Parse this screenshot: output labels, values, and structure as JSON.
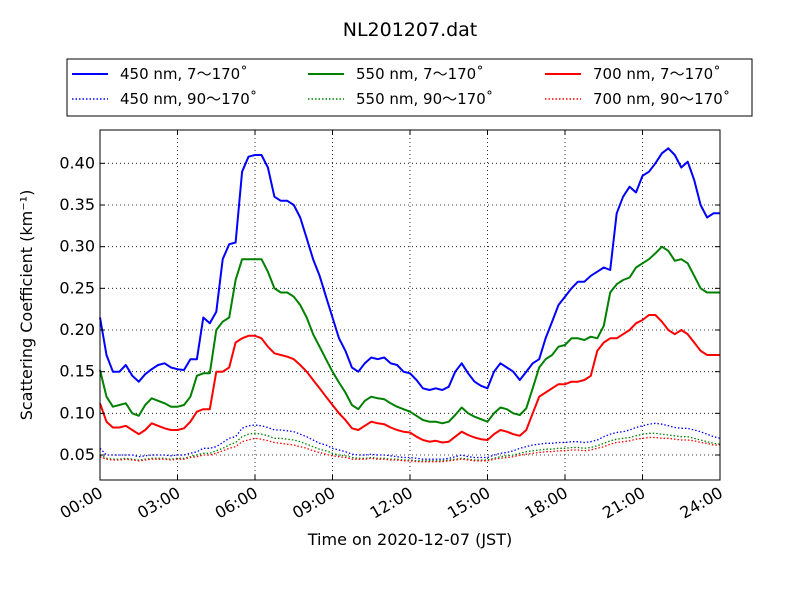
{
  "chart_data": {
    "type": "line",
    "title": "NL201207.dat",
    "xlabel": "Time on 2020-12-07 (JST)",
    "ylabel": "Scattering Coefficient (km⁻¹)",
    "xlim": [
      0,
      24
    ],
    "ylim": [
      0.02,
      0.44
    ],
    "x_tick_labels": [
      "00:00",
      "03:00",
      "06:00",
      "09:00",
      "12:00",
      "15:00",
      "18:00",
      "21:00",
      "24:00"
    ],
    "y_tick_labels": [
      "0.05",
      "0.10",
      "0.15",
      "0.20",
      "0.25",
      "0.30",
      "0.35",
      "0.40"
    ],
    "grid": true,
    "legend_position": "top",
    "x": [
      0,
      0.25,
      0.5,
      0.75,
      1,
      1.25,
      1.5,
      1.75,
      2,
      2.25,
      2.5,
      2.75,
      3,
      3.25,
      3.5,
      3.75,
      4,
      4.25,
      4.5,
      4.75,
      5,
      5.25,
      5.5,
      5.75,
      6,
      6.25,
      6.5,
      6.75,
      7,
      7.25,
      7.5,
      7.75,
      8,
      8.25,
      8.5,
      8.75,
      9,
      9.25,
      9.5,
      9.75,
      10,
      10.25,
      10.5,
      10.75,
      11,
      11.25,
      11.5,
      11.75,
      12,
      12.25,
      12.5,
      12.75,
      13,
      13.25,
      13.5,
      13.75,
      14,
      14.25,
      14.5,
      14.75,
      15,
      15.25,
      15.5,
      15.75,
      16,
      16.25,
      16.5,
      16.75,
      17,
      17.25,
      17.5,
      17.75,
      18,
      18.25,
      18.5,
      18.75,
      19,
      19.25,
      19.5,
      19.75,
      20,
      20.25,
      20.5,
      20.75,
      21,
      21.25,
      21.5,
      21.75,
      22,
      22.25,
      22.5,
      22.75,
      23,
      23.25,
      23.5,
      23.75,
      24
    ],
    "series": [
      {
        "name": "450 nm, 7～170˚",
        "color": "#0000ff",
        "style": "solid",
        "values": [
          0.215,
          0.17,
          0.15,
          0.15,
          0.158,
          0.145,
          0.138,
          0.147,
          0.153,
          0.158,
          0.16,
          0.155,
          0.153,
          0.152,
          0.165,
          0.165,
          0.215,
          0.208,
          0.222,
          0.285,
          0.303,
          0.305,
          0.39,
          0.408,
          0.41,
          0.41,
          0.395,
          0.36,
          0.355,
          0.355,
          0.35,
          0.335,
          0.31,
          0.285,
          0.265,
          0.24,
          0.215,
          0.19,
          0.175,
          0.155,
          0.15,
          0.16,
          0.167,
          0.165,
          0.167,
          0.16,
          0.158,
          0.15,
          0.148,
          0.14,
          0.13,
          0.128,
          0.13,
          0.128,
          0.132,
          0.15,
          0.16,
          0.148,
          0.138,
          0.133,
          0.13,
          0.15,
          0.16,
          0.155,
          0.15,
          0.14,
          0.15,
          0.16,
          0.165,
          0.19,
          0.21,
          0.23,
          0.24,
          0.25,
          0.258,
          0.258,
          0.265,
          0.27,
          0.275,
          0.272,
          0.34,
          0.36,
          0.372,
          0.365,
          0.385,
          0.39,
          0.4,
          0.412,
          0.418,
          0.41,
          0.395,
          0.402,
          0.38,
          0.35,
          0.335,
          0.34,
          0.34
        ]
      },
      {
        "name": "550 nm, 7～170˚",
        "color": "#008000",
        "style": "solid",
        "values": [
          0.152,
          0.12,
          0.108,
          0.11,
          0.112,
          0.1,
          0.097,
          0.11,
          0.118,
          0.115,
          0.112,
          0.108,
          0.108,
          0.11,
          0.12,
          0.145,
          0.148,
          0.148,
          0.2,
          0.21,
          0.215,
          0.26,
          0.285,
          0.285,
          0.285,
          0.285,
          0.27,
          0.25,
          0.245,
          0.245,
          0.24,
          0.23,
          0.215,
          0.195,
          0.18,
          0.165,
          0.15,
          0.137,
          0.125,
          0.11,
          0.105,
          0.115,
          0.12,
          0.118,
          0.117,
          0.112,
          0.108,
          0.105,
          0.102,
          0.097,
          0.092,
          0.09,
          0.09,
          0.088,
          0.09,
          0.098,
          0.107,
          0.1,
          0.096,
          0.093,
          0.09,
          0.1,
          0.107,
          0.105,
          0.1,
          0.098,
          0.106,
          0.13,
          0.155,
          0.165,
          0.17,
          0.18,
          0.182,
          0.19,
          0.19,
          0.188,
          0.192,
          0.19,
          0.205,
          0.245,
          0.255,
          0.26,
          0.263,
          0.275,
          0.28,
          0.285,
          0.292,
          0.3,
          0.295,
          0.283,
          0.285,
          0.28,
          0.265,
          0.25,
          0.245,
          0.245,
          0.245
        ]
      },
      {
        "name": "700 nm, 7～170˚",
        "color": "#ff0000",
        "style": "solid",
        "values": [
          0.112,
          0.09,
          0.083,
          0.083,
          0.085,
          0.08,
          0.075,
          0.08,
          0.088,
          0.085,
          0.082,
          0.08,
          0.08,
          0.082,
          0.09,
          0.102,
          0.105,
          0.105,
          0.15,
          0.15,
          0.155,
          0.185,
          0.19,
          0.193,
          0.193,
          0.19,
          0.18,
          0.172,
          0.17,
          0.168,
          0.165,
          0.158,
          0.15,
          0.14,
          0.13,
          0.12,
          0.11,
          0.1,
          0.092,
          0.082,
          0.08,
          0.085,
          0.09,
          0.088,
          0.087,
          0.083,
          0.08,
          0.078,
          0.077,
          0.072,
          0.068,
          0.066,
          0.067,
          0.065,
          0.066,
          0.072,
          0.078,
          0.074,
          0.071,
          0.069,
          0.068,
          0.075,
          0.08,
          0.078,
          0.075,
          0.073,
          0.08,
          0.1,
          0.12,
          0.125,
          0.13,
          0.135,
          0.135,
          0.138,
          0.138,
          0.14,
          0.145,
          0.175,
          0.185,
          0.19,
          0.19,
          0.195,
          0.2,
          0.208,
          0.212,
          0.218,
          0.218,
          0.21,
          0.2,
          0.195,
          0.2,
          0.195,
          0.185,
          0.175,
          0.17,
          0.17,
          0.17
        ]
      },
      {
        "name": "450 nm, 90～170˚",
        "color": "#0000ff",
        "style": "dotted",
        "values": [
          0.058,
          0.05,
          0.05,
          0.05,
          0.05,
          0.05,
          0.048,
          0.049,
          0.05,
          0.05,
          0.05,
          0.049,
          0.05,
          0.05,
          0.052,
          0.054,
          0.058,
          0.058,
          0.06,
          0.065,
          0.07,
          0.072,
          0.082,
          0.085,
          0.086,
          0.085,
          0.083,
          0.08,
          0.08,
          0.079,
          0.078,
          0.075,
          0.072,
          0.068,
          0.064,
          0.062,
          0.058,
          0.056,
          0.054,
          0.051,
          0.05,
          0.05,
          0.051,
          0.05,
          0.05,
          0.049,
          0.048,
          0.047,
          0.047,
          0.046,
          0.045,
          0.045,
          0.045,
          0.045,
          0.046,
          0.048,
          0.05,
          0.048,
          0.047,
          0.047,
          0.047,
          0.05,
          0.052,
          0.053,
          0.055,
          0.058,
          0.06,
          0.062,
          0.063,
          0.064,
          0.064,
          0.065,
          0.065,
          0.066,
          0.066,
          0.065,
          0.066,
          0.068,
          0.072,
          0.075,
          0.077,
          0.078,
          0.08,
          0.083,
          0.085,
          0.087,
          0.088,
          0.087,
          0.085,
          0.083,
          0.082,
          0.082,
          0.08,
          0.078,
          0.075,
          0.072,
          0.07
        ]
      },
      {
        "name": "550 nm, 90～170˚",
        "color": "#008000",
        "style": "dotted",
        "values": [
          0.05,
          0.046,
          0.045,
          0.045,
          0.046,
          0.045,
          0.044,
          0.045,
          0.046,
          0.046,
          0.046,
          0.045,
          0.046,
          0.046,
          0.048,
          0.05,
          0.052,
          0.052,
          0.055,
          0.058,
          0.062,
          0.065,
          0.072,
          0.075,
          0.076,
          0.075,
          0.073,
          0.07,
          0.07,
          0.069,
          0.068,
          0.066,
          0.063,
          0.06,
          0.057,
          0.055,
          0.052,
          0.05,
          0.049,
          0.047,
          0.046,
          0.046,
          0.047,
          0.046,
          0.046,
          0.045,
          0.045,
          0.044,
          0.044,
          0.043,
          0.043,
          0.043,
          0.043,
          0.043,
          0.044,
          0.045,
          0.046,
          0.045,
          0.044,
          0.044,
          0.044,
          0.046,
          0.048,
          0.049,
          0.05,
          0.052,
          0.054,
          0.055,
          0.056,
          0.057,
          0.057,
          0.058,
          0.058,
          0.059,
          0.059,
          0.058,
          0.059,
          0.061,
          0.064,
          0.067,
          0.069,
          0.07,
          0.071,
          0.073,
          0.075,
          0.076,
          0.076,
          0.075,
          0.074,
          0.073,
          0.072,
          0.072,
          0.07,
          0.068,
          0.066,
          0.064,
          0.063
        ]
      },
      {
        "name": "700 nm, 90～170˚",
        "color": "#ff0000",
        "style": "dotted",
        "values": [
          0.048,
          0.045,
          0.044,
          0.044,
          0.045,
          0.044,
          0.043,
          0.044,
          0.045,
          0.045,
          0.045,
          0.044,
          0.045,
          0.045,
          0.047,
          0.048,
          0.05,
          0.05,
          0.052,
          0.055,
          0.058,
          0.06,
          0.066,
          0.068,
          0.07,
          0.069,
          0.067,
          0.065,
          0.064,
          0.063,
          0.062,
          0.06,
          0.058,
          0.055,
          0.053,
          0.051,
          0.049,
          0.048,
          0.047,
          0.045,
          0.045,
          0.045,
          0.046,
          0.045,
          0.045,
          0.044,
          0.044,
          0.043,
          0.043,
          0.042,
          0.042,
          0.042,
          0.042,
          0.042,
          0.043,
          0.044,
          0.045,
          0.044,
          0.043,
          0.043,
          0.043,
          0.045,
          0.046,
          0.047,
          0.048,
          0.05,
          0.051,
          0.052,
          0.053,
          0.054,
          0.054,
          0.055,
          0.055,
          0.056,
          0.056,
          0.055,
          0.056,
          0.058,
          0.06,
          0.063,
          0.065,
          0.066,
          0.067,
          0.069,
          0.07,
          0.071,
          0.071,
          0.07,
          0.07,
          0.069,
          0.068,
          0.068,
          0.067,
          0.065,
          0.064,
          0.062,
          0.062
        ]
      }
    ],
    "legend": [
      {
        "label": "450 nm, 7～170˚",
        "color": "#0000ff",
        "style": "solid"
      },
      {
        "label": "550 nm, 7～170˚",
        "color": "#008000",
        "style": "solid"
      },
      {
        "label": "700 nm, 7～170˚",
        "color": "#ff0000",
        "style": "solid"
      },
      {
        "label": "450 nm, 90～170˚",
        "color": "#0000ff",
        "style": "dotted"
      },
      {
        "label": "550 nm, 90～170˚",
        "color": "#008000",
        "style": "dotted"
      },
      {
        "label": "700 nm, 90～170˚",
        "color": "#ff0000",
        "style": "dotted"
      }
    ]
  }
}
